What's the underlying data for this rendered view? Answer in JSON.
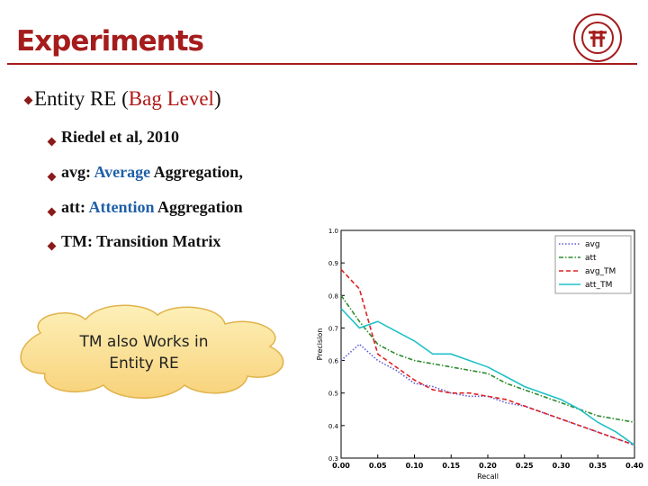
{
  "slide": {
    "title": "Experiments",
    "bullet": [
      "Entity RE (",
      "Bag Level",
      ")"
    ],
    "sub_bullets": [
      [
        "Riedel et al, 2010"
      ],
      [
        "avg: ",
        "Average",
        " Aggregation,"
      ],
      [
        "att: ",
        "Attention",
        " Aggregation"
      ],
      [
        "TM: Transition Matrix"
      ]
    ],
    "callout": "TM also Works in Entity RE"
  },
  "chart_data": {
    "type": "line",
    "x_label": "Recall",
    "y_label": "Precision",
    "x": [
      0.0,
      0.025,
      0.05,
      0.075,
      0.1,
      0.125,
      0.15,
      0.175,
      0.2,
      0.225,
      0.25,
      0.275,
      0.3,
      0.325,
      0.35,
      0.375,
      0.4
    ],
    "series": [
      {
        "name": "avg",
        "color": "#5b5bd6",
        "style": "dotted",
        "values": [
          0.6,
          0.65,
          0.6,
          0.57,
          0.53,
          0.52,
          0.5,
          0.49,
          0.49,
          0.47,
          0.46,
          0.44,
          0.42,
          0.4,
          0.38,
          0.36,
          0.34
        ]
      },
      {
        "name": "att",
        "color": "#2e8b2e",
        "style": "dashdot",
        "values": [
          0.8,
          0.72,
          0.65,
          0.62,
          0.6,
          0.59,
          0.58,
          0.57,
          0.56,
          0.53,
          0.51,
          0.49,
          0.47,
          0.45,
          0.43,
          0.42,
          0.41
        ]
      },
      {
        "name": "avg_TM",
        "color": "#e02020",
        "style": "dashed",
        "values": [
          0.88,
          0.82,
          0.62,
          0.58,
          0.54,
          0.51,
          0.5,
          0.5,
          0.49,
          0.48,
          0.46,
          0.44,
          0.42,
          0.4,
          0.38,
          0.36,
          0.34
        ]
      },
      {
        "name": "att_TM",
        "color": "#20c0c8",
        "style": "solid",
        "values": [
          0.76,
          0.7,
          0.72,
          0.69,
          0.66,
          0.62,
          0.62,
          0.6,
          0.58,
          0.55,
          0.52,
          0.5,
          0.48,
          0.45,
          0.41,
          0.38,
          0.34
        ]
      }
    ],
    "xlim": [
      0,
      0.4
    ],
    "xticks": [
      {
        "value": 0,
        "label": "0.00"
      },
      {
        "value": 0.05,
        "label": "0.05"
      },
      {
        "value": 0.1,
        "label": "0.10"
      },
      {
        "value": 0.15,
        "label": "0.15"
      },
      {
        "value": 0.2,
        "label": "0.20"
      },
      {
        "value": 0.25,
        "label": "0.25"
      },
      {
        "value": 0.3,
        "label": "0.30"
      },
      {
        "value": 0.35,
        "label": "0.35"
      },
      {
        "value": 0.4,
        "label": "0.40"
      }
    ],
    "ylim": [
      0.3,
      1.0
    ],
    "yticks": [
      0.3,
      0.4,
      0.5,
      0.6,
      0.7,
      0.8,
      0.9,
      {
        "value": 1.0,
        "label": "1.0"
      }
    ],
    "legend": "upper right"
  }
}
